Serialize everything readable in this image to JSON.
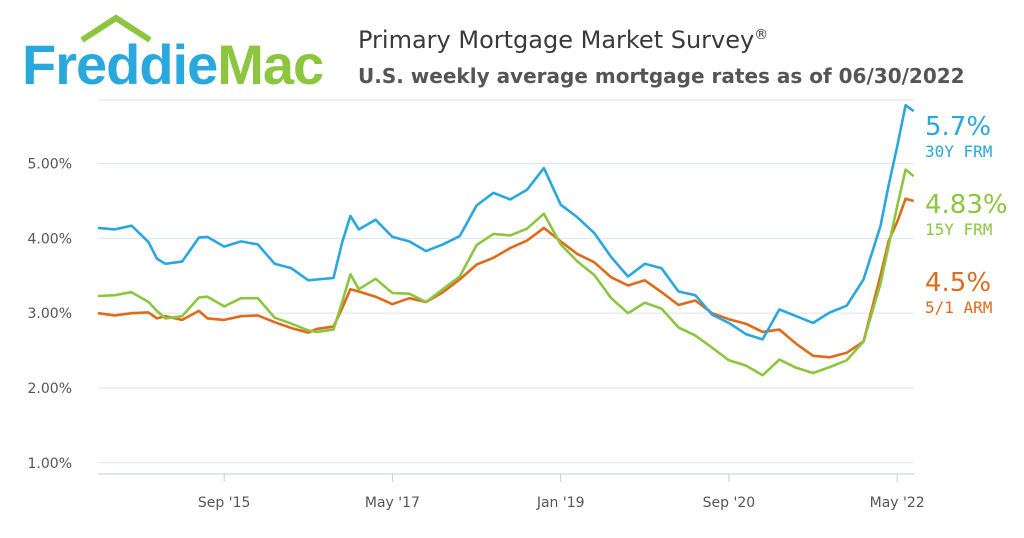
{
  "header": {
    "logo_text": "FreddieMac",
    "title": "Primary Mortgage Market Survey",
    "title_mark": "®",
    "subtitle": "U.S. weekly average mortgage rates as of 06/30/2022"
  },
  "colors": {
    "logo_blue": "#29a8dd",
    "logo_green": "#8cc63f",
    "frm30": "#2aa7de",
    "frm15": "#8cc63f",
    "arm51": "#e06a1b",
    "grid": "#dde3ec",
    "axis_text": "#555555"
  },
  "end_labels": [
    {
      "value": "5.7%",
      "name": "30Y FRM",
      "color": "#2aa7de"
    },
    {
      "value": "4.83%",
      "name": "15Y FRM",
      "color": "#8cc63f"
    },
    {
      "value": "4.5%",
      "name": "5/1 ARM",
      "color": "#e06a1b"
    }
  ],
  "chart_data": {
    "type": "line",
    "title": "Primary Mortgage Market Survey",
    "subtitle": "U.S. weekly average mortgage rates as of 06/30/2022",
    "x_ticks": [
      "Sep '15",
      "May '17",
      "Jan '19",
      "Sep '20",
      "May '22"
    ],
    "y_ticks": [
      "1.00%",
      "2.00%",
      "3.00%",
      "4.00%",
      "5.00%"
    ],
    "xlim": [
      "2014-06",
      "2022-07"
    ],
    "ylim": [
      0.85,
      5.85
    ],
    "grid": true,
    "series": [
      {
        "name": "30Y FRM",
        "color": "#2aa7de",
        "points": [
          [
            "2014-06",
            4.14
          ],
          [
            "2014-08",
            4.12
          ],
          [
            "2014-10",
            4.17
          ],
          [
            "2014-12",
            3.95
          ],
          [
            "2015-01",
            3.73
          ],
          [
            "2015-02",
            3.66
          ],
          [
            "2015-04",
            3.69
          ],
          [
            "2015-06",
            4.01
          ],
          [
            "2015-07",
            4.02
          ],
          [
            "2015-09",
            3.89
          ],
          [
            "2015-11",
            3.96
          ],
          [
            "2016-01",
            3.92
          ],
          [
            "2016-03",
            3.66
          ],
          [
            "2016-05",
            3.6
          ],
          [
            "2016-07",
            3.44
          ],
          [
            "2016-08",
            3.45
          ],
          [
            "2016-10",
            3.47
          ],
          [
            "2016-11",
            3.94
          ],
          [
            "2016-12",
            4.3
          ],
          [
            "2017-01",
            4.12
          ],
          [
            "2017-03",
            4.25
          ],
          [
            "2017-05",
            4.02
          ],
          [
            "2017-07",
            3.96
          ],
          [
            "2017-09",
            3.83
          ],
          [
            "2017-11",
            3.92
          ],
          [
            "2018-01",
            4.03
          ],
          [
            "2018-03",
            4.44
          ],
          [
            "2018-05",
            4.61
          ],
          [
            "2018-07",
            4.52
          ],
          [
            "2018-09",
            4.65
          ],
          [
            "2018-11",
            4.94
          ],
          [
            "2019-01",
            4.45
          ],
          [
            "2019-03",
            4.28
          ],
          [
            "2019-05",
            4.07
          ],
          [
            "2019-07",
            3.75
          ],
          [
            "2019-09",
            3.49
          ],
          [
            "2019-11",
            3.66
          ],
          [
            "2020-01",
            3.6
          ],
          [
            "2020-03",
            3.29
          ],
          [
            "2020-05",
            3.24
          ],
          [
            "2020-07",
            2.98
          ],
          [
            "2020-09",
            2.87
          ],
          [
            "2020-11",
            2.72
          ],
          [
            "2021-01",
            2.65
          ],
          [
            "2021-03",
            3.05
          ],
          [
            "2021-05",
            2.96
          ],
          [
            "2021-07",
            2.87
          ],
          [
            "2021-09",
            3.01
          ],
          [
            "2021-11",
            3.1
          ],
          [
            "2022-01",
            3.45
          ],
          [
            "2022-03",
            4.16
          ],
          [
            "2022-04",
            4.72
          ],
          [
            "2022-05",
            5.23
          ],
          [
            "2022-06",
            5.78
          ],
          [
            "2022-06-30",
            5.7
          ]
        ]
      },
      {
        "name": "15Y FRM",
        "color": "#8cc63f",
        "points": [
          [
            "2014-06",
            3.23
          ],
          [
            "2014-08",
            3.24
          ],
          [
            "2014-10",
            3.28
          ],
          [
            "2014-12",
            3.15
          ],
          [
            "2015-01",
            3.03
          ],
          [
            "2015-02",
            2.93
          ],
          [
            "2015-04",
            2.96
          ],
          [
            "2015-06",
            3.21
          ],
          [
            "2015-07",
            3.22
          ],
          [
            "2015-09",
            3.09
          ],
          [
            "2015-11",
            3.2
          ],
          [
            "2016-01",
            3.2
          ],
          [
            "2016-03",
            2.94
          ],
          [
            "2016-05",
            2.86
          ],
          [
            "2016-07",
            2.77
          ],
          [
            "2016-08",
            2.75
          ],
          [
            "2016-10",
            2.78
          ],
          [
            "2016-11",
            3.14
          ],
          [
            "2016-12",
            3.52
          ],
          [
            "2017-01",
            3.32
          ],
          [
            "2017-03",
            3.46
          ],
          [
            "2017-05",
            3.27
          ],
          [
            "2017-07",
            3.26
          ],
          [
            "2017-09",
            3.15
          ],
          [
            "2017-11",
            3.32
          ],
          [
            "2018-01",
            3.49
          ],
          [
            "2018-03",
            3.91
          ],
          [
            "2018-05",
            4.06
          ],
          [
            "2018-07",
            4.04
          ],
          [
            "2018-09",
            4.13
          ],
          [
            "2018-11",
            4.33
          ],
          [
            "2019-01",
            3.92
          ],
          [
            "2019-03",
            3.69
          ],
          [
            "2019-05",
            3.51
          ],
          [
            "2019-07",
            3.2
          ],
          [
            "2019-09",
            3.0
          ],
          [
            "2019-11",
            3.14
          ],
          [
            "2020-01",
            3.06
          ],
          [
            "2020-03",
            2.81
          ],
          [
            "2020-05",
            2.7
          ],
          [
            "2020-07",
            2.54
          ],
          [
            "2020-09",
            2.37
          ],
          [
            "2020-11",
            2.3
          ],
          [
            "2021-01",
            2.17
          ],
          [
            "2021-03",
            2.38
          ],
          [
            "2021-05",
            2.27
          ],
          [
            "2021-07",
            2.2
          ],
          [
            "2021-09",
            2.28
          ],
          [
            "2021-11",
            2.37
          ],
          [
            "2022-01",
            2.62
          ],
          [
            "2022-03",
            3.39
          ],
          [
            "2022-04",
            3.91
          ],
          [
            "2022-05",
            4.43
          ],
          [
            "2022-06",
            4.92
          ],
          [
            "2022-06-30",
            4.83
          ]
        ]
      },
      {
        "name": "5/1 ARM",
        "color": "#e06a1b",
        "points": [
          [
            "2014-06",
            3.0
          ],
          [
            "2014-08",
            2.97
          ],
          [
            "2014-10",
            3.0
          ],
          [
            "2014-12",
            3.01
          ],
          [
            "2015-01",
            2.93
          ],
          [
            "2015-02",
            2.96
          ],
          [
            "2015-04",
            2.91
          ],
          [
            "2015-06",
            3.03
          ],
          [
            "2015-07",
            2.93
          ],
          [
            "2015-09",
            2.91
          ],
          [
            "2015-11",
            2.96
          ],
          [
            "2016-01",
            2.97
          ],
          [
            "2016-03",
            2.88
          ],
          [
            "2016-05",
            2.8
          ],
          [
            "2016-07",
            2.74
          ],
          [
            "2016-08",
            2.79
          ],
          [
            "2016-10",
            2.82
          ],
          [
            "2016-11",
            3.06
          ],
          [
            "2016-12",
            3.32
          ],
          [
            "2017-01",
            3.29
          ],
          [
            "2017-03",
            3.22
          ],
          [
            "2017-05",
            3.12
          ],
          [
            "2017-07",
            3.2
          ],
          [
            "2017-09",
            3.15
          ],
          [
            "2017-11",
            3.28
          ],
          [
            "2018-01",
            3.45
          ],
          [
            "2018-03",
            3.65
          ],
          [
            "2018-05",
            3.74
          ],
          [
            "2018-07",
            3.87
          ],
          [
            "2018-09",
            3.97
          ],
          [
            "2018-11",
            4.14
          ],
          [
            "2019-01",
            3.96
          ],
          [
            "2019-03",
            3.79
          ],
          [
            "2019-05",
            3.68
          ],
          [
            "2019-07",
            3.48
          ],
          [
            "2019-09",
            3.37
          ],
          [
            "2019-11",
            3.44
          ],
          [
            "2020-01",
            3.28
          ],
          [
            "2020-03",
            3.11
          ],
          [
            "2020-05",
            3.17
          ],
          [
            "2020-07",
            3.0
          ],
          [
            "2020-09",
            2.92
          ],
          [
            "2020-11",
            2.86
          ],
          [
            "2021-01",
            2.75
          ],
          [
            "2021-03",
            2.78
          ],
          [
            "2021-05",
            2.59
          ],
          [
            "2021-07",
            2.43
          ],
          [
            "2021-09",
            2.41
          ],
          [
            "2021-11",
            2.47
          ],
          [
            "2022-01",
            2.62
          ],
          [
            "2022-03",
            3.5
          ],
          [
            "2022-04",
            3.97
          ],
          [
            "2022-05",
            4.22
          ],
          [
            "2022-06",
            4.53
          ],
          [
            "2022-06-30",
            4.5
          ]
        ]
      }
    ]
  }
}
